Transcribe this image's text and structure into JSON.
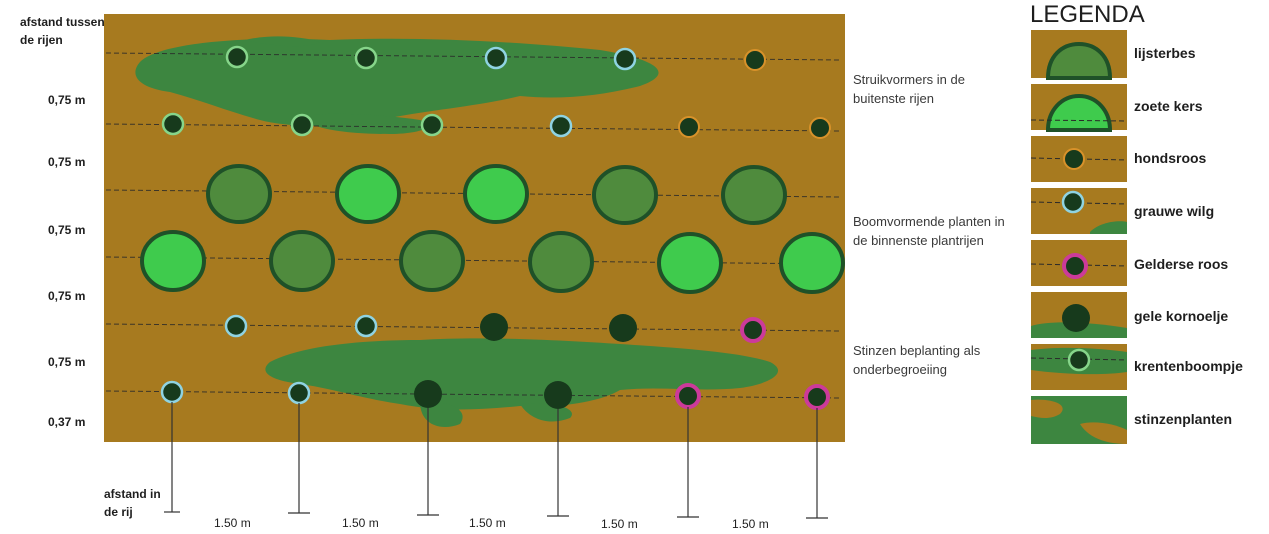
{
  "colors": {
    "soil": "#a77a1f",
    "under": "#3d8640",
    "dark_ring": "#1f5128",
    "lijsterbes": "#4f8b3d",
    "zoete_kers": "#3fcb4d",
    "shrub": "#173a1c",
    "ring_hondsroos": "#d8922a",
    "ring_wilg": "#8fd3e2",
    "ring_gelderse": "#cc3a9a",
    "ring_krent": "#86d58a"
  },
  "left_header": {
    "line1": "afstand tussen",
    "line2": "de rijen"
  },
  "row_spacings": [
    "0,75 m",
    "0,75 m",
    "0,75 m",
    "0,75 m",
    "0,75 m",
    "0,37 m"
  ],
  "bottom_header": {
    "line1": "afstand in",
    "line2": "de rij"
  },
  "col_spacings": [
    "1.50 m",
    "1.50 m",
    "1.50 m",
    "1.50 m",
    "1.50 m"
  ],
  "descriptions": [
    {
      "line1": "Struikvormers in de",
      "line2": "buitenste rijen"
    },
    {
      "line1": "Boomvormende planten in",
      "line2": "de binnenste plantrijen"
    },
    {
      "line1": "Stinzen beplanting als",
      "line2": "onderbegroeiing"
    }
  ],
  "legend": {
    "title": "LEGENDA",
    "items": [
      {
        "icon": "lijsterbes-icon",
        "label": "lijsterbes"
      },
      {
        "icon": "zoete-kers-icon",
        "label": "zoete kers"
      },
      {
        "icon": "hondsroos-icon",
        "label": "hondsroos"
      },
      {
        "icon": "grauwe-wilg-icon",
        "label": "grauwe wilg"
      },
      {
        "icon": "gelderse-roos-icon",
        "label": "Gelderse roos"
      },
      {
        "icon": "gele-kornoelje-icon",
        "label": "gele kornoelje"
      },
      {
        "icon": "krentenboompje-icon",
        "label": "krentenboompje"
      },
      {
        "icon": "stinzenplanten-icon",
        "label": "stinzenplanten"
      }
    ]
  }
}
